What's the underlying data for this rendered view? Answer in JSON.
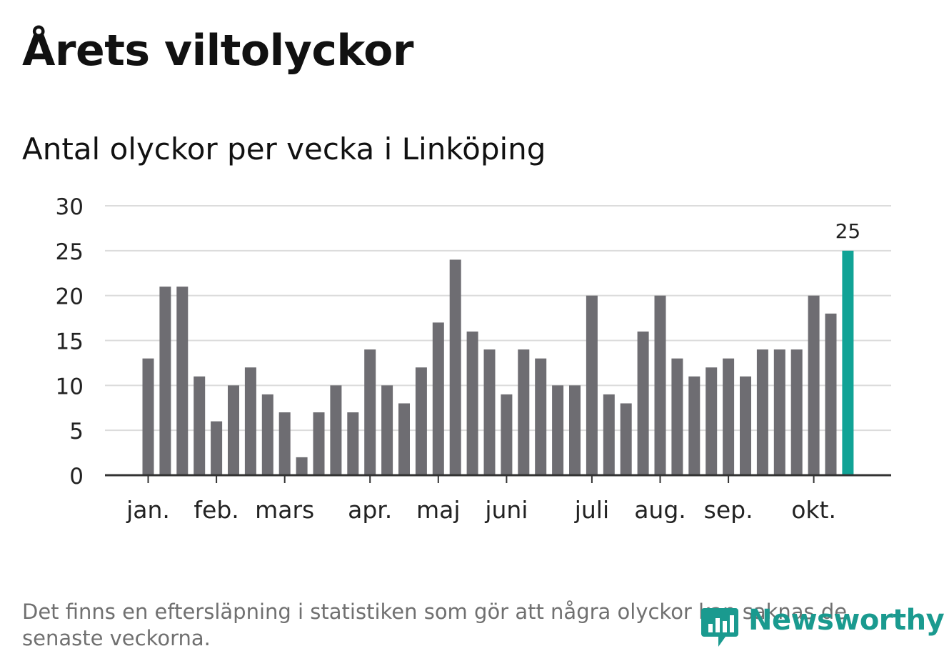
{
  "header": {
    "title": "Årets viltolyckor",
    "subtitle": "Antal olyckor per vecka i Linköping"
  },
  "footer": {
    "note": "Det finns en eftersläpning i statistiken som gör att några olyckor kan saknas de senaste veckorna.",
    "brand": "Newsworthy"
  },
  "colors": {
    "bar": "#6e6d72",
    "highlight": "#11a396",
    "grid": "#dcdcdc",
    "axis": "#333333",
    "text": "#222222"
  },
  "chart_data": {
    "type": "bar",
    "title": "Antal olyckor per vecka i Linköping",
    "xlabel": "",
    "ylabel": "",
    "ylim": [
      0,
      30
    ],
    "yticks": [
      "0",
      "5",
      "10",
      "15",
      "20",
      "25",
      "30"
    ],
    "values": [
      13,
      21,
      21,
      11,
      6,
      10,
      12,
      9,
      7,
      2,
      7,
      10,
      7,
      14,
      10,
      8,
      12,
      17,
      24,
      16,
      14,
      9,
      14,
      13,
      10,
      10,
      20,
      9,
      8,
      16,
      20,
      13,
      11,
      12,
      13,
      11,
      14,
      14,
      14,
      20,
      18,
      25
    ],
    "highlight_index": 41,
    "highlight_label": "25",
    "month_ticks": [
      {
        "label": "jan.",
        "week_index": 0
      },
      {
        "label": "feb.",
        "week_index": 4
      },
      {
        "label": "mars",
        "week_index": 8
      },
      {
        "label": "apr.",
        "week_index": 13
      },
      {
        "label": "maj",
        "week_index": 17
      },
      {
        "label": "juni",
        "week_index": 21
      },
      {
        "label": "juli",
        "week_index": 26
      },
      {
        "label": "aug.",
        "week_index": 30
      },
      {
        "label": "sep.",
        "week_index": 34
      },
      {
        "label": "okt.",
        "week_index": 39
      }
    ],
    "grid": true
  }
}
